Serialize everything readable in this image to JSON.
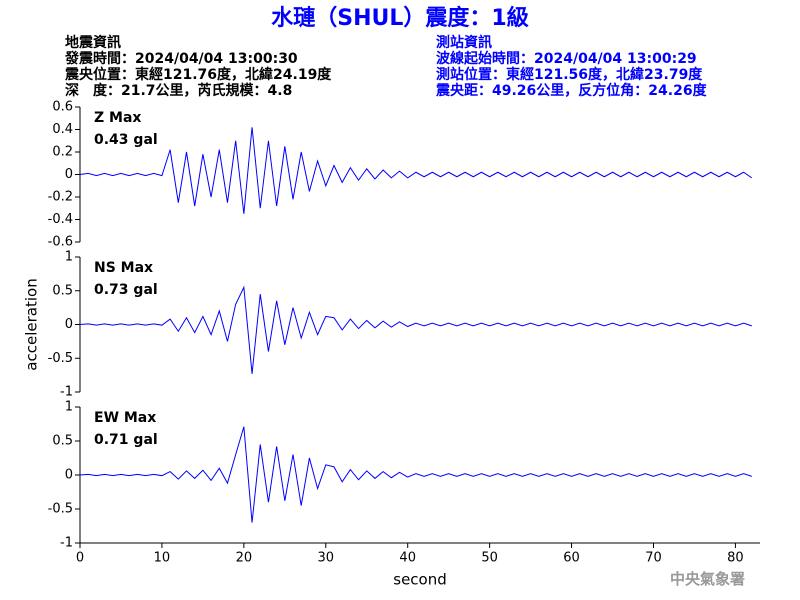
{
  "header": {
    "title": "水璉（SHUL）震度：1級",
    "left": [
      "地震資訊",
      "發震時間：2024/04/04 13:00:30",
      "震央位置：東經121.76度，北緯24.19度",
      "深　度：21.7公里，芮氏規模：4.8"
    ],
    "right": [
      "測站資訊",
      "波線起始時間：2024/04/04 13:00:29",
      "測站位置：東經121.56度，北緯23.79度",
      "震央距：49.26公里，反方位角：24.26度"
    ]
  },
  "footer": "中央氣象署",
  "chart_data": [
    {
      "type": "line",
      "annotations": [
        "Z Max",
        "0.43 gal"
      ],
      "annotation_color": "#e00000",
      "color": "#0000ff",
      "xlim": [
        0,
        83
      ],
      "ylim": [
        -0.6,
        0.6
      ],
      "yticks": [
        0.6,
        0.4,
        0.2,
        0,
        -0.2,
        -0.4,
        -0.6
      ],
      "x": [
        0,
        1,
        2,
        3,
        4,
        5,
        6,
        7,
        8,
        9,
        10,
        11,
        12,
        13,
        14,
        15,
        16,
        17,
        18,
        19,
        20,
        21,
        22,
        23,
        24,
        25,
        26,
        27,
        28,
        29,
        30,
        31,
        32,
        33,
        34,
        35,
        36,
        37,
        38,
        39,
        40,
        41,
        42,
        43,
        44,
        45,
        46,
        47,
        48,
        49,
        50,
        51,
        52,
        53,
        54,
        55,
        56,
        57,
        58,
        59,
        60,
        61,
        62,
        63,
        64,
        65,
        66,
        67,
        68,
        69,
        70,
        71,
        72,
        73,
        74,
        75,
        76,
        77,
        78,
        79,
        80,
        81,
        82
      ],
      "values": [
        0,
        0.01,
        -0.01,
        0.01,
        -0.01,
        0.01,
        -0.01,
        0.01,
        -0.01,
        0.01,
        -0.01,
        0.22,
        -0.25,
        0.2,
        -0.28,
        0.18,
        -0.2,
        0.22,
        -0.25,
        0.3,
        -0.35,
        0.42,
        -0.3,
        0.3,
        -0.28,
        0.25,
        -0.22,
        0.2,
        -0.15,
        0.12,
        -0.1,
        0.08,
        -0.07,
        0.06,
        -0.05,
        0.05,
        -0.04,
        0.04,
        -0.03,
        0.03,
        -0.03,
        0.02,
        -0.02,
        0.02,
        -0.02,
        0.02,
        -0.02,
        0.02,
        -0.02,
        0.02,
        -0.02,
        0.02,
        -0.02,
        0.02,
        -0.02,
        0.02,
        -0.02,
        0.02,
        -0.02,
        0.02,
        -0.02,
        0.02,
        -0.02,
        0.02,
        -0.02,
        0.02,
        -0.02,
        0.02,
        -0.02,
        0.02,
        -0.02,
        0.02,
        -0.02,
        0.02,
        -0.02,
        0.02,
        -0.02,
        0.02,
        -0.02,
        0.02,
        -0.02,
        0.02,
        -0.03
      ]
    },
    {
      "type": "line",
      "annotations": [
        "NS Max",
        "0.73 gal"
      ],
      "annotation_color": "#e00000",
      "color": "#0000ff",
      "ylabel": "acceleration",
      "xlim": [
        0,
        83
      ],
      "ylim": [
        -1,
        1
      ],
      "yticks": [
        1,
        0.5,
        0,
        -0.5,
        -1
      ],
      "x": [
        0,
        1,
        2,
        3,
        4,
        5,
        6,
        7,
        8,
        9,
        10,
        11,
        12,
        13,
        14,
        15,
        16,
        17,
        18,
        19,
        20,
        21,
        22,
        23,
        24,
        25,
        26,
        27,
        28,
        29,
        30,
        31,
        32,
        33,
        34,
        35,
        36,
        37,
        38,
        39,
        40,
        41,
        42,
        43,
        44,
        45,
        46,
        47,
        48,
        49,
        50,
        51,
        52,
        53,
        54,
        55,
        56,
        57,
        58,
        59,
        60,
        61,
        62,
        63,
        64,
        65,
        66,
        67,
        68,
        69,
        70,
        71,
        72,
        73,
        74,
        75,
        76,
        77,
        78,
        79,
        80,
        81,
        82
      ],
      "values": [
        0,
        0.01,
        -0.01,
        0.01,
        -0.01,
        0.01,
        -0.01,
        0.01,
        -0.01,
        0.01,
        -0.01,
        0.08,
        -0.1,
        0.1,
        -0.12,
        0.12,
        -0.15,
        0.2,
        -0.25,
        0.3,
        0.55,
        -0.73,
        0.45,
        -0.4,
        0.35,
        -0.3,
        0.25,
        -0.2,
        0.18,
        -0.15,
        0.12,
        0.1,
        -0.08,
        0.08,
        -0.06,
        0.06,
        -0.05,
        0.05,
        -0.04,
        0.04,
        -0.03,
        0.02,
        -0.02,
        0.02,
        -0.02,
        0.02,
        -0.02,
        0.02,
        -0.02,
        0.02,
        -0.02,
        0.02,
        -0.02,
        0.02,
        -0.02,
        0.02,
        -0.02,
        0.02,
        -0.02,
        0.02,
        -0.02,
        0.02,
        -0.02,
        0.02,
        -0.02,
        0.02,
        -0.02,
        0.02,
        -0.02,
        0.02,
        -0.02,
        0.02,
        -0.02,
        0.02,
        -0.02,
        0.02,
        -0.02,
        0.02,
        -0.02,
        0.02,
        -0.02,
        0.02,
        -0.02
      ]
    },
    {
      "type": "line",
      "annotations": [
        "EW Max",
        "0.71 gal"
      ],
      "annotation_color": "#e00000",
      "color": "#0000ff",
      "xlabel": "second",
      "xlim": [
        0,
        83
      ],
      "xticks": [
        0,
        10,
        20,
        30,
        40,
        50,
        60,
        70,
        80
      ],
      "ylim": [
        -1,
        1
      ],
      "yticks": [
        1,
        0.5,
        0,
        -0.5,
        -1
      ],
      "x": [
        0,
        1,
        2,
        3,
        4,
        5,
        6,
        7,
        8,
        9,
        10,
        11,
        12,
        13,
        14,
        15,
        16,
        17,
        18,
        19,
        20,
        21,
        22,
        23,
        24,
        25,
        26,
        27,
        28,
        29,
        30,
        31,
        32,
        33,
        34,
        35,
        36,
        37,
        38,
        39,
        40,
        41,
        42,
        43,
        44,
        45,
        46,
        47,
        48,
        49,
        50,
        51,
        52,
        53,
        54,
        55,
        56,
        57,
        58,
        59,
        60,
        61,
        62,
        63,
        64,
        65,
        66,
        67,
        68,
        69,
        70,
        71,
        72,
        73,
        74,
        75,
        76,
        77,
        78,
        79,
        80,
        81,
        82
      ],
      "values": [
        0,
        0.01,
        -0.01,
        0.01,
        -0.01,
        0.01,
        -0.01,
        0.01,
        -0.01,
        0.01,
        -0.01,
        0.05,
        -0.06,
        0.06,
        -0.05,
        0.07,
        -0.08,
        0.1,
        -0.12,
        0.3,
        0.71,
        -0.7,
        0.45,
        -0.4,
        0.42,
        -0.38,
        0.3,
        -0.45,
        0.25,
        -0.2,
        0.15,
        0.12,
        -0.1,
        0.08,
        -0.07,
        0.06,
        -0.05,
        0.05,
        -0.04,
        0.04,
        -0.03,
        0.02,
        -0.02,
        0.02,
        -0.02,
        0.02,
        -0.02,
        0.02,
        -0.02,
        0.02,
        -0.02,
        0.02,
        -0.02,
        0.02,
        -0.02,
        0.02,
        -0.02,
        0.02,
        -0.02,
        0.02,
        -0.02,
        0.02,
        -0.02,
        0.02,
        -0.02,
        0.02,
        -0.02,
        0.02,
        -0.02,
        0.02,
        -0.02,
        0.02,
        -0.02,
        0.02,
        -0.02,
        0.02,
        -0.02,
        0.02,
        -0.02,
        0.02,
        -0.02,
        0.02,
        -0.02
      ]
    }
  ]
}
